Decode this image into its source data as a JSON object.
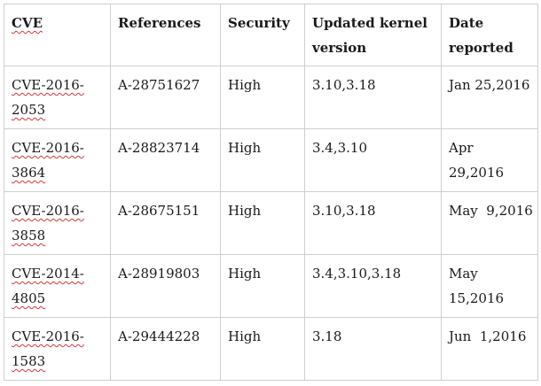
{
  "table": {
    "headers": {
      "cve": "CVE",
      "references": "References",
      "security": "Security",
      "kernel": "Updated kernel version",
      "date": "Date reported"
    },
    "rows": [
      {
        "cve": "CVE-2016-2053",
        "references": "A-28751627",
        "security": "High",
        "kernel": "3.10,3.18",
        "date": "Jan 25,2016"
      },
      {
        "cve": "CVE-2016-3864",
        "references": "A-28823714",
        "security": "High",
        "kernel": "3.4,3.10",
        "date": "Apr 29,2016"
      },
      {
        "cve": "CVE-2016-3858",
        "references": "A-28675151",
        "security": "High",
        "kernel": "3.10,3.18",
        "date": "May  9,2016"
      },
      {
        "cve": "CVE-2014-4805",
        "references": "A-28919803",
        "security": "High",
        "kernel": "3.4,3.10,3.18",
        "date": "May 15,2016"
      },
      {
        "cve": "CVE-2016-1583",
        "references": "A-29444228",
        "security": "High",
        "kernel": "3.18",
        "date": "Jun  1,2016"
      }
    ]
  }
}
